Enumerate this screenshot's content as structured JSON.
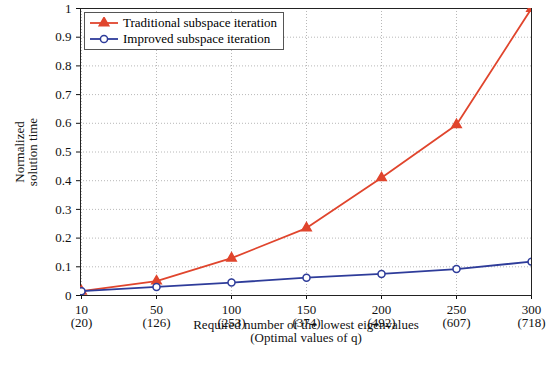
{
  "chart_data": {
    "type": "line",
    "categories": [
      "10\n(20)",
      "50\n(126)",
      "100\n(253)",
      "150\n(374)",
      "200\n(492)",
      "250\n(607)",
      "300\n(718)"
    ],
    "xlabel": "Required number of the lowest eigenvalues\n(Optimal values of q)",
    "ylabel": "Normalized\nsolution time",
    "ylim": [
      0,
      1
    ],
    "yticks": [
      0,
      0.1,
      0.2,
      0.3,
      0.4,
      0.5,
      0.6,
      0.7,
      0.8,
      0.9,
      1
    ],
    "grid": true,
    "legend": "upper left",
    "series": [
      {
        "name": "Traditional subspace iteration",
        "color": "#e0452d",
        "marker": "triangle",
        "values": [
          0.015,
          0.05,
          0.13,
          0.235,
          0.41,
          0.595,
          1.0
        ]
      },
      {
        "name": "Improved subspace iteration",
        "color": "#2e3c9a",
        "marker": "circle",
        "values": [
          0.015,
          0.03,
          0.045,
          0.062,
          0.075,
          0.092,
          0.118
        ]
      }
    ]
  }
}
